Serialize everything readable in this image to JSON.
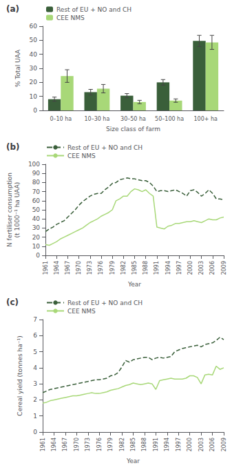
{
  "chart_data": [
    {
      "type": "bar",
      "title": "(a)",
      "xlabel": "Size class of farm",
      "ylabel": "% Total UAA",
      "categories": [
        "0–10 ha",
        "10–30 ha",
        "30–50 ha",
        "50–100 ha",
        "100+ ha"
      ],
      "series": [
        {
          "name": "Rest of EU + NO and CH",
          "color": "#3a5f3a",
          "values": [
            8.0,
            13.0,
            10.5,
            20.0,
            49.5
          ],
          "errors": [
            1.5,
            2.0,
            1.5,
            2.0,
            4.0
          ]
        },
        {
          "name": "CEE NMS",
          "color": "#a8d878",
          "values": [
            24.5,
            15.5,
            6.0,
            7.0,
            48.5
          ],
          "errors": [
            4.5,
            3.0,
            1.2,
            1.2,
            5.0
          ]
        }
      ],
      "ylim": [
        0,
        60
      ],
      "yticks": [
        0,
        10,
        20,
        30,
        40,
        50,
        60
      ],
      "grid": false,
      "legend": "upper left"
    },
    {
      "type": "line",
      "title": "(b)",
      "xlabel": "Year",
      "ylabel": "N fertiliser consumption\n(t 1000⁻¹ ha UAA)",
      "x": [
        1961,
        1962,
        1963,
        1964,
        1965,
        1966,
        1967,
        1968,
        1969,
        1970,
        1971,
        1972,
        1973,
        1974,
        1975,
        1976,
        1977,
        1978,
        1979,
        1980,
        1981,
        1982,
        1983,
        1984,
        1985,
        1986,
        1987,
        1988,
        1989,
        1990,
        1991,
        1992,
        1993,
        1994,
        1995,
        1996,
        1997,
        1998,
        1999,
        2000,
        2001,
        2002,
        2003,
        2004,
        2005,
        2006,
        2007,
        2008,
        2009
      ],
      "series": [
        {
          "name": "Rest of EU + NO and CH",
          "color": "#3a5f3a",
          "line_style": "dashed",
          "values": [
            26,
            29,
            31,
            34,
            36,
            38,
            42,
            46,
            50,
            55,
            59,
            62,
            65,
            67,
            68,
            68,
            72,
            75,
            79,
            80,
            83,
            84,
            85,
            84,
            84,
            83,
            82,
            82,
            80,
            76,
            70,
            71,
            71,
            70,
            71,
            72,
            70,
            68,
            65,
            71,
            72,
            69,
            65,
            68,
            72,
            68,
            62,
            62,
            61
          ]
        },
        {
          "name": "CEE NMS",
          "color": "#a8d878",
          "line_style": "solid",
          "values": [
            12,
            11,
            13,
            15,
            18,
            20,
            22,
            24,
            26,
            28,
            30,
            33,
            36,
            38,
            40,
            43,
            45,
            47,
            50,
            60,
            62,
            65,
            65,
            70,
            73,
            72,
            70,
            72,
            68,
            65,
            31,
            30,
            29,
            32,
            33,
            35,
            35,
            36,
            37,
            37,
            38,
            37,
            36,
            38,
            40,
            39,
            39,
            41,
            42
          ]
        }
      ],
      "xlim": [
        1961,
        2009
      ],
      "xticks": [
        1961,
        1964,
        1967,
        1970,
        1973,
        1976,
        1979,
        1982,
        1985,
        1988,
        1991,
        1994,
        1997,
        2000,
        2003,
        2006,
        2009
      ],
      "ylim": [
        0,
        100
      ],
      "yticks": [
        0,
        10,
        20,
        30,
        40,
        50,
        60,
        70,
        80,
        90,
        100
      ],
      "grid": false,
      "legend": "upper left"
    },
    {
      "type": "line",
      "title": "(c)",
      "xlabel": "Year",
      "ylabel": "Cereal yield (tonnes ha⁻¹)",
      "x": [
        1961,
        1962,
        1963,
        1964,
        1965,
        1966,
        1967,
        1968,
        1969,
        1970,
        1971,
        1972,
        1973,
        1974,
        1975,
        1976,
        1977,
        1978,
        1979,
        1980,
        1981,
        1982,
        1983,
        1984,
        1985,
        1986,
        1987,
        1988,
        1989,
        1990,
        1991,
        1992,
        1993,
        1994,
        1995,
        1996,
        1997,
        1998,
        1999,
        2000,
        2001,
        2002,
        2003,
        2004,
        2005,
        2006,
        2007,
        2008,
        2009
      ],
      "series": [
        {
          "name": "Rest of EU + NO and CH",
          "color": "#3a5f3a",
          "line_style": "dashed",
          "values": [
            2.45,
            2.55,
            2.65,
            2.7,
            2.75,
            2.8,
            2.85,
            2.9,
            2.95,
            3.0,
            3.05,
            3.1,
            3.15,
            3.2,
            3.25,
            3.25,
            3.3,
            3.35,
            3.5,
            3.55,
            3.7,
            4.05,
            4.45,
            4.35,
            4.5,
            4.55,
            4.6,
            4.65,
            4.65,
            4.5,
            4.6,
            4.65,
            4.6,
            4.65,
            4.7,
            5.0,
            5.1,
            5.2,
            5.25,
            5.3,
            5.35,
            5.4,
            5.3,
            5.45,
            5.5,
            5.55,
            5.7,
            5.9,
            5.75
          ]
        },
        {
          "name": "CEE NMS",
          "color": "#a8d878",
          "line_style": "solid",
          "values": [
            1.8,
            1.85,
            1.95,
            2.0,
            2.05,
            2.1,
            2.15,
            2.2,
            2.25,
            2.25,
            2.3,
            2.35,
            2.4,
            2.45,
            2.4,
            2.4,
            2.45,
            2.5,
            2.6,
            2.65,
            2.7,
            2.8,
            2.9,
            2.95,
            3.05,
            3.0,
            2.95,
            3.0,
            3.05,
            3.0,
            2.65,
            3.2,
            3.25,
            3.3,
            3.35,
            3.3,
            3.3,
            3.3,
            3.35,
            3.5,
            3.5,
            3.4,
            3.0,
            3.55,
            3.6,
            3.55,
            4.1,
            3.9,
            4.0
          ]
        }
      ],
      "xlim": [
        1961,
        2009
      ],
      "xticks": [
        1961,
        1964,
        1967,
        1970,
        1973,
        1976,
        1979,
        1982,
        1985,
        1988,
        1991,
        1994,
        1997,
        2000,
        2003,
        2006,
        2009
      ],
      "ylim": [
        0,
        7
      ],
      "yticks": [
        0,
        1,
        2,
        3,
        4,
        5,
        6,
        7
      ],
      "grid": false,
      "legend": "upper left"
    }
  ]
}
